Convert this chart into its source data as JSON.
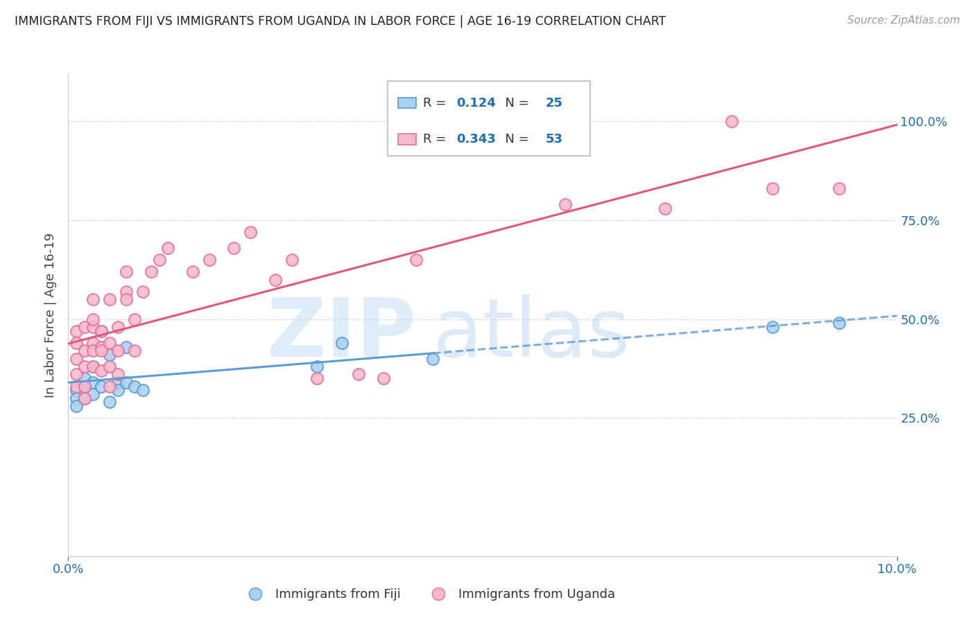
{
  "title": "IMMIGRANTS FROM FIJI VS IMMIGRANTS FROM UGANDA IN LABOR FORCE | AGE 16-19 CORRELATION CHART",
  "source": "Source: ZipAtlas.com",
  "ylabel": "In Labor Force | Age 16-19",
  "xlim": [
    0.0,
    0.1
  ],
  "ylim": [
    -0.1,
    1.12
  ],
  "ytick_positions": [
    0.25,
    0.5,
    0.75,
    1.0
  ],
  "ytick_labels": [
    "25.0%",
    "50.0%",
    "75.0%",
    "100.0%"
  ],
  "xtick_left_label": "0.0%",
  "xtick_right_label": "10.0%",
  "fiji_fill_color": "#a8d0f0",
  "fiji_edge_color": "#5b9bd5",
  "uganda_fill_color": "#f8b8cc",
  "uganda_edge_color": "#e8709a",
  "trend_fiji_color": "#5b9bd5",
  "trend_uganda_color": "#e05878",
  "R_fiji": 0.124,
  "N_fiji": 25,
  "R_uganda": 0.343,
  "N_uganda": 53,
  "fiji_x": [
    0.001,
    0.001,
    0.001,
    0.002,
    0.002,
    0.002,
    0.003,
    0.003,
    0.003,
    0.004,
    0.004,
    0.004,
    0.005,
    0.005,
    0.006,
    0.006,
    0.007,
    0.007,
    0.008,
    0.009,
    0.03,
    0.033,
    0.044,
    0.085,
    0.093
  ],
  "fiji_y": [
    0.32,
    0.3,
    0.28,
    0.35,
    0.33,
    0.3,
    0.38,
    0.34,
    0.31,
    0.47,
    0.43,
    0.33,
    0.41,
    0.29,
    0.34,
    0.32,
    0.43,
    0.34,
    0.33,
    0.32,
    0.38,
    0.44,
    0.4,
    0.48,
    0.49
  ],
  "uganda_x": [
    0.001,
    0.001,
    0.001,
    0.001,
    0.001,
    0.002,
    0.002,
    0.002,
    0.002,
    0.002,
    0.003,
    0.003,
    0.003,
    0.003,
    0.003,
    0.003,
    0.004,
    0.004,
    0.004,
    0.004,
    0.005,
    0.005,
    0.005,
    0.005,
    0.006,
    0.006,
    0.006,
    0.007,
    0.007,
    0.007,
    0.008,
    0.008,
    0.009,
    0.01,
    0.011,
    0.012,
    0.015,
    0.017,
    0.02,
    0.022,
    0.025,
    0.027,
    0.03,
    0.035,
    0.038,
    0.042,
    0.043,
    0.047,
    0.06,
    0.072,
    0.08,
    0.085,
    0.093
  ],
  "uganda_y": [
    0.4,
    0.36,
    0.33,
    0.47,
    0.44,
    0.38,
    0.42,
    0.48,
    0.33,
    0.3,
    0.44,
    0.38,
    0.42,
    0.55,
    0.48,
    0.5,
    0.37,
    0.43,
    0.47,
    0.42,
    0.33,
    0.38,
    0.44,
    0.55,
    0.36,
    0.42,
    0.48,
    0.57,
    0.62,
    0.55,
    0.42,
    0.5,
    0.57,
    0.62,
    0.65,
    0.68,
    0.62,
    0.65,
    0.68,
    0.72,
    0.6,
    0.65,
    0.35,
    0.36,
    0.35,
    0.65,
    0.97,
    0.95,
    0.79,
    0.78,
    1.0,
    0.83,
    0.83
  ],
  "grid_color": "#d8d8d8",
  "spine_color": "#cccccc",
  "tick_color": "#1a6fba",
  "title_color": "#222222",
  "source_color": "#999999",
  "ylabel_color": "#444444"
}
